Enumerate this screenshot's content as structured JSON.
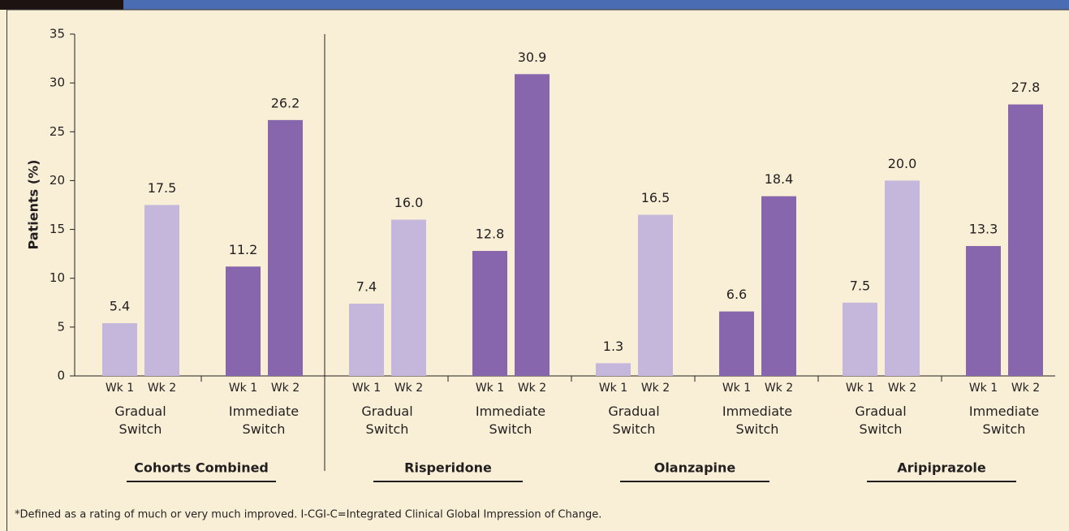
{
  "chart_data": {
    "type": "bar",
    "y_label": "Patients (%)",
    "ylim": [
      0,
      35
    ],
    "yticks": [
      0,
      5,
      10,
      15,
      20,
      25,
      30,
      35
    ],
    "weeks": [
      "Wk 1",
      "Wk 2"
    ],
    "groups": [
      {
        "name": "Cohorts Combined",
        "switches": [
          {
            "name": "Gradual Switch",
            "color": "#c5b6dc",
            "values": [
              5.4,
              17.5
            ],
            "value_labels": [
              "5.4",
              "17.5"
            ]
          },
          {
            "name": "Immediate Switch",
            "color": "#8766ad",
            "values": [
              11.2,
              26.2
            ],
            "value_labels": [
              "11.2",
              "26.2"
            ]
          }
        ]
      },
      {
        "name": "Risperidone",
        "switches": [
          {
            "name": "Gradual Switch",
            "color": "#c5b6dc",
            "values": [
              7.4,
              16
            ],
            "value_labels": [
              "7.4",
              "16.0"
            ]
          },
          {
            "name": "Immediate Switch",
            "color": "#8766ad",
            "values": [
              12.8,
              30.9
            ],
            "value_labels": [
              "12.8",
              "30.9"
            ]
          }
        ]
      },
      {
        "name": "Olanzapine",
        "switches": [
          {
            "name": "Gradual Switch",
            "color": "#c5b6dc",
            "values": [
              1.3,
              16.5
            ],
            "value_labels": [
              "1.3",
              "16.5"
            ]
          },
          {
            "name": "Immediate Switch",
            "color": "#8766ad",
            "values": [
              6.6,
              18.4
            ],
            "value_labels": [
              "6.6",
              "18.4"
            ]
          }
        ]
      },
      {
        "name": "Aripiprazole",
        "switches": [
          {
            "name": "Gradual Switch",
            "color": "#c5b6dc",
            "values": [
              7.5,
              20
            ],
            "value_labels": [
              "7.5",
              "20.0"
            ]
          },
          {
            "name": "Immediate Switch",
            "color": "#8766ad",
            "values": [
              13.3,
              27.8
            ],
            "value_labels": [
              "13.3",
              "27.8"
            ]
          }
        ]
      }
    ],
    "footnote": "*Defined as a rating of much or very much improved.  I-CGI-C=Integrated Clinical Global Impression of Change."
  }
}
